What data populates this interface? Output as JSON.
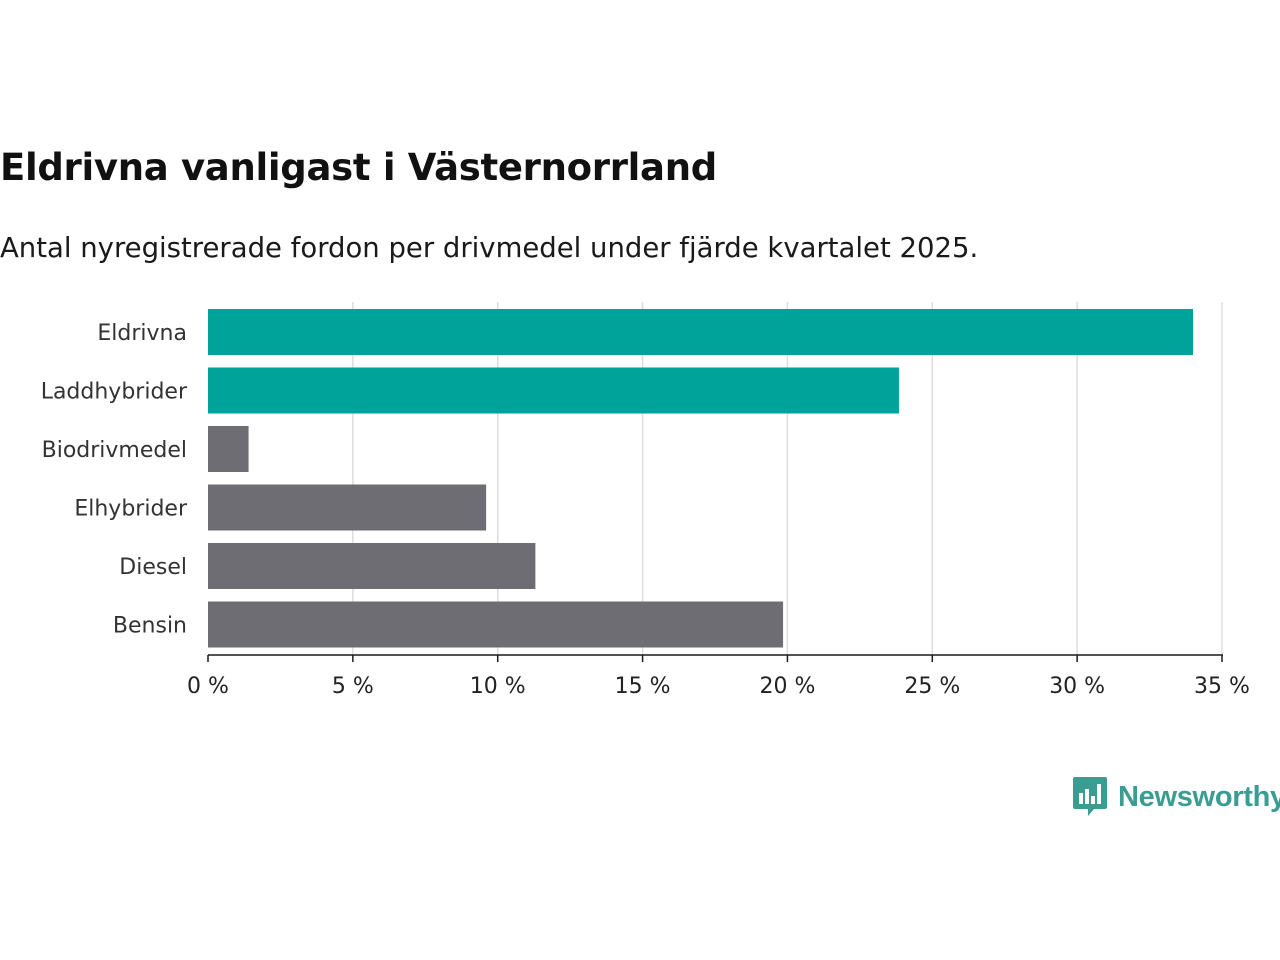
{
  "title": "Eldrivna vanligast i Västernorrland",
  "subtitle": "Antal nyregistrerade fordon per drivmedel under fjärde kvartalet 2025.",
  "brand": {
    "name": "Newsworthy",
    "color": "#3b9d92"
  },
  "colors": {
    "highlight": "#00a39a",
    "default": "#6d6d73",
    "grid": "#dddddd",
    "axis": "#1a1a1a"
  },
  "chart_data": {
    "type": "bar",
    "orientation": "horizontal",
    "categories": [
      "Eldrivna",
      "Laddhybrider",
      "Biodrivmedel",
      "Elhybrider",
      "Diesel",
      "Bensin"
    ],
    "values": [
      34.0,
      23.85,
      1.4,
      9.6,
      11.3,
      19.85
    ],
    "highlighted": [
      true,
      true,
      false,
      false,
      false,
      false
    ],
    "unit": "%",
    "xlim": [
      0,
      35
    ],
    "xticks": [
      0,
      5,
      10,
      15,
      20,
      25,
      30,
      35
    ],
    "xtick_labels": [
      "0 %",
      "5 %",
      "10 %",
      "15 %",
      "20 %",
      "25 %",
      "30 %",
      "35 %"
    ],
    "grid": true,
    "legend": "none"
  }
}
